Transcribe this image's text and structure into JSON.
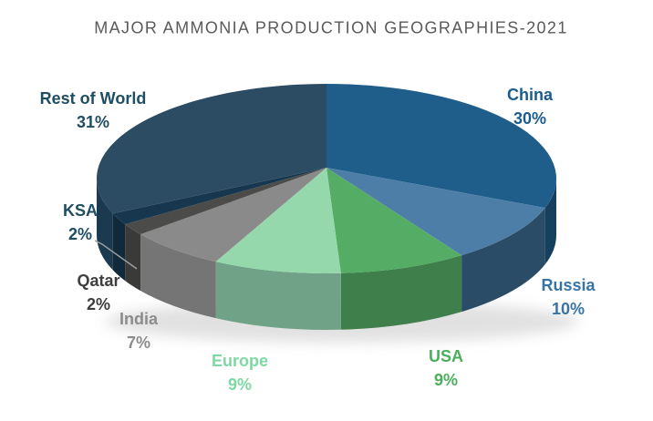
{
  "title": "MAJOR AMMONIA PRODUCTION GEOGRAPHIES-2021",
  "title_color": "#5a5a5a",
  "chart_data": {
    "type": "pie",
    "style": "pie-3d",
    "title": "MAJOR AMMONIA PRODUCTION GEOGRAPHIES-2021",
    "unit": "%",
    "start_angle_deg": 0,
    "direction": "clockwise",
    "total": 100,
    "slices": [
      {
        "label": "China",
        "value": 30,
        "display": "30%",
        "color": "#1F5D8A",
        "side_color": "#173F5E",
        "label_color": "#1A5C8E"
      },
      {
        "label": "Russia",
        "value": 10,
        "display": "10%",
        "color": "#4C7EA8",
        "side_color": "#2A4C66",
        "label_color": "#3874A4"
      },
      {
        "label": "USA",
        "value": 9,
        "display": "9%",
        "color": "#55AD65",
        "side_color": "#3E7F4B",
        "label_color": "#4BAE5C"
      },
      {
        "label": "Europe",
        "value": 9,
        "display": "9%",
        "color": "#94D8AC",
        "side_color": "#6FA287",
        "label_color": "#7ED8A3"
      },
      {
        "label": "India",
        "value": 7,
        "display": "7%",
        "color": "#8A8A8A",
        "side_color": "#757575",
        "label_color": "#8C8C8C"
      },
      {
        "label": "Qatar",
        "value": 2,
        "display": "2%",
        "color": "#4B4B49",
        "side_color": "#3A3A38",
        "label_color": "#3E3E3E"
      },
      {
        "label": "KSA",
        "value": 2,
        "display": "2%",
        "color": "#16374E",
        "side_color": "#102A3C",
        "label_color": "#1F4E63"
      },
      {
        "label": "Rest of World",
        "value": 31,
        "display": "31%",
        "color": "#2B4C62",
        "side_color": "#1C3A4F",
        "label_color": "#1F4E63"
      }
    ]
  }
}
